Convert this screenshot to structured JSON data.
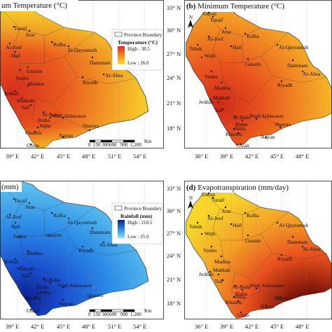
{
  "panels": [
    {
      "id": "a",
      "title": "um Temperature (°C)",
      "legend": {
        "box_label": "Province Boundary",
        "title": "Temperature (°C)",
        "high": "High : 38.5",
        "low": "Low : 26.0"
      },
      "x_ticks": [
        "39° E",
        "42° E",
        "45° E",
        "48° E",
        "51° E",
        "54° E"
      ],
      "y_ticks": [],
      "scale": {
        "unit": "Km",
        "labels": [
          "0",
          "150 300",
          "600",
          "900",
          "1,200"
        ]
      },
      "cities": [
        "Turaif",
        "Arar",
        "Rafha",
        "Al-Jouf",
        "Hail",
        "Al-Qaysumah",
        "Dammam",
        "Al-Ahsa",
        "Gassim",
        "Riyadh",
        "Yenbu",
        "Madina",
        "Jeddah",
        "Makkah",
        "Taif",
        "Al-Baha",
        "Bisha",
        "Wadi Aldawaser",
        "Abha",
        "Khamis",
        "Najran",
        "Sharora",
        "Gizan"
      ]
    },
    {
      "id": "b",
      "title": "Minimum Temperature (°C)",
      "x_ticks": [
        "36° E",
        "39° E",
        "42° E",
        "45° E",
        "48° E"
      ],
      "y_ticks": [
        "33° N",
        "30° N",
        "27° N",
        "24° N",
        "21° N",
        "18° N"
      ],
      "cities": [
        "Gurait",
        "Turaif",
        "Arar",
        "Rafha",
        "Al-Jouf",
        "Tabuk",
        "Hail",
        "Al-Qaysumah",
        "Wejh",
        "Dammam",
        "Gassim",
        "Al-Ahsa",
        "Yenbu",
        "Riyadh",
        "Madina",
        "Jeddah",
        "Makkah",
        "Taif",
        "Al-Baha",
        "Bisha",
        "Wadi Aldawaser",
        "Abha",
        "Khamis",
        "Sharora",
        "Najran",
        "Gizan"
      ]
    },
    {
      "id": "c",
      "title": "(mm)",
      "legend": {
        "box_label": "Province Boundary",
        "title": "Rainfall (mm)",
        "high": "High : 210.5",
        "low": "Low : 25.0"
      },
      "x_ticks": [
        "39° E",
        "42° E",
        "45° E",
        "48° E",
        "51° E",
        "54° E"
      ],
      "y_ticks": [],
      "scale": {
        "unit": "Km",
        "labels": [
          "0",
          "150 300",
          "600",
          "900",
          "1,200"
        ]
      },
      "cities": [
        "Turaif",
        "Arar",
        "Rafha",
        "Al-Jouf",
        "Hail",
        "Al-Qaysumah",
        "Dammam",
        "Al-Ahsa",
        "Gassim",
        "Riyadh",
        "Yenbu",
        "Madina",
        "Jeddah",
        "Makkah",
        "Taif",
        "Al-Baha",
        "Bisha",
        "Wadi Aldawaser",
        "Abha",
        "Khamis",
        "Najran",
        "Sharora",
        "Gizan"
      ]
    },
    {
      "id": "d",
      "title": "Evapotranspiration (mm/day)",
      "x_ticks": [
        "36° E",
        "39° E",
        "42° E",
        "45° E",
        "48° E"
      ],
      "y_ticks": [
        "33° N",
        "30° N",
        "27° N",
        "24° N",
        "21° N",
        "18° N"
      ],
      "cities": [
        "Gurait",
        "Turaif",
        "Arar",
        "Rafha",
        "Al-Jouf",
        "Tabuk",
        "Hail",
        "Al-Qaysumah",
        "Wejh",
        "Dammam",
        "Gassim",
        "Al-Ahsa",
        "Yenbu",
        "Riyadh",
        "Madina",
        "Jeddah",
        "Makkah",
        "Taif",
        "Al-Baha",
        "Bisha",
        "Wadi Aldawaser",
        "Abha",
        "Khamis",
        "Sharora",
        "Najran",
        "Gizan"
      ]
    }
  ],
  "north_label": "N",
  "colors": {
    "temp_high": "#d62e1c",
    "temp_mid": "#f08a1e",
    "temp_low": "#f7e32a",
    "rain_high": "#0b1f8c",
    "rain_mid": "#2b8ae6",
    "rain_low": "#6fd6f2",
    "et_high": "#2a0505",
    "et_mid": "#e8501e",
    "et_low": "#f7d52a"
  }
}
